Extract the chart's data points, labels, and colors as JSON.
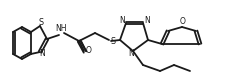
{
  "bg_color": "#ffffff",
  "line_color": "#1a1a1a",
  "line_width": 1.3,
  "figsize": [
    2.28,
    0.84
  ],
  "dpi": 100,
  "xlim": [
    0,
    228
  ],
  "ylim": [
    0,
    84
  ]
}
